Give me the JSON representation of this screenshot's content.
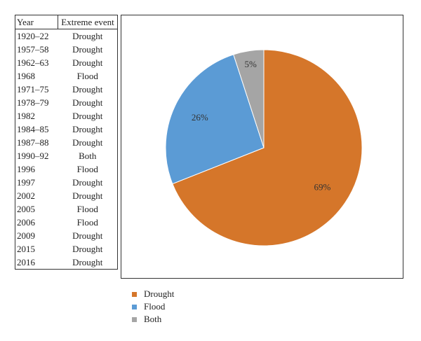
{
  "table": {
    "headers": {
      "year": "Year",
      "event": "Extreme event"
    },
    "rows": [
      {
        "year": "1920–22",
        "event": "Drought"
      },
      {
        "year": "1957–58",
        "event": "Drought"
      },
      {
        "year": "1962–63",
        "event": "Drought"
      },
      {
        "year": "1968",
        "event": "Flood"
      },
      {
        "year": "1971–75",
        "event": "Drought"
      },
      {
        "year": "1978–79",
        "event": "Drought"
      },
      {
        "year": "1982",
        "event": "Drought"
      },
      {
        "year": "1984–85",
        "event": "Drought"
      },
      {
        "year": "1987–88",
        "event": "Drought"
      },
      {
        "year": "1990–92",
        "event": "Both"
      },
      {
        "year": "1996",
        "event": "Flood"
      },
      {
        "year": "1997",
        "event": "Drought"
      },
      {
        "year": "2002",
        "event": "Drought"
      },
      {
        "year": "2005",
        "event": "Flood"
      },
      {
        "year": "2006",
        "event": "Flood"
      },
      {
        "year": "2009",
        "event": "Drought"
      },
      {
        "year": "2015",
        "event": "Drought"
      },
      {
        "year": "2016",
        "event": "Drought"
      }
    ]
  },
  "chart_data": {
    "type": "pie",
    "categories": [
      "Drought",
      "Flood",
      "Both"
    ],
    "values": [
      69,
      26,
      5
    ],
    "labels": [
      "69%",
      "26%",
      "5%"
    ],
    "colors": [
      "#D5762A",
      "#5B9BD5",
      "#A5A5A5"
    ],
    "legend_position": "bottom-left"
  },
  "legend": {
    "items": [
      {
        "label": "Drought",
        "color": "#D5762A"
      },
      {
        "label": "Flood",
        "color": "#5B9BD5"
      },
      {
        "label": "Both",
        "color": "#A5A5A5"
      }
    ]
  }
}
